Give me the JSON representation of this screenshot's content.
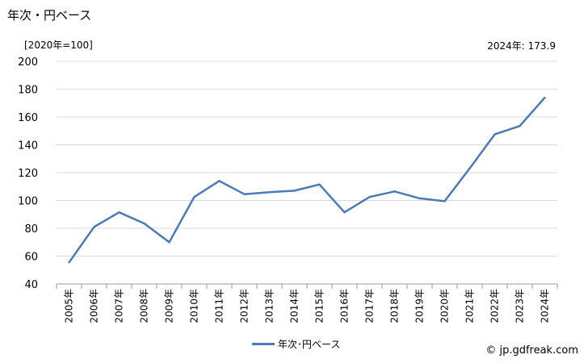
{
  "header": {
    "title": "年次・円ベース",
    "unit": "[2020年=100]",
    "latest": "2024年: 173.9"
  },
  "legend": {
    "label": "年次･円ベース"
  },
  "credit": "© jp.gdfreak.com",
  "colors": {
    "line": "#4a7ab8",
    "grid": "#d9d9d9"
  },
  "chart_data": {
    "type": "line",
    "title": "年次・円ベース",
    "ylabel": "[2020年=100]",
    "xlabel": "",
    "categories": [
      "2005年",
      "2006年",
      "2007年",
      "2008年",
      "2009年",
      "2010年",
      "2011年",
      "2012年",
      "2013年",
      "2014年",
      "2015年",
      "2016年",
      "2017年",
      "2018年",
      "2019年",
      "2020年",
      "2021年",
      "2022年",
      "2023年",
      "2024年"
    ],
    "yticks": [
      "40",
      "60",
      "80",
      "100",
      "120",
      "140",
      "160",
      "180",
      "200"
    ],
    "ylim": [
      40,
      200
    ],
    "grid": true,
    "legend_position": "bottom",
    "series": [
      {
        "name": "年次･円ベース",
        "values": [
          55.5,
          81,
          91.5,
          83.5,
          70,
          102.5,
          114,
          104.5,
          106,
          107,
          111.5,
          91.5,
          102.5,
          106.5,
          101.5,
          99.5,
          123,
          147.5,
          153.5,
          173.9
        ]
      }
    ]
  }
}
